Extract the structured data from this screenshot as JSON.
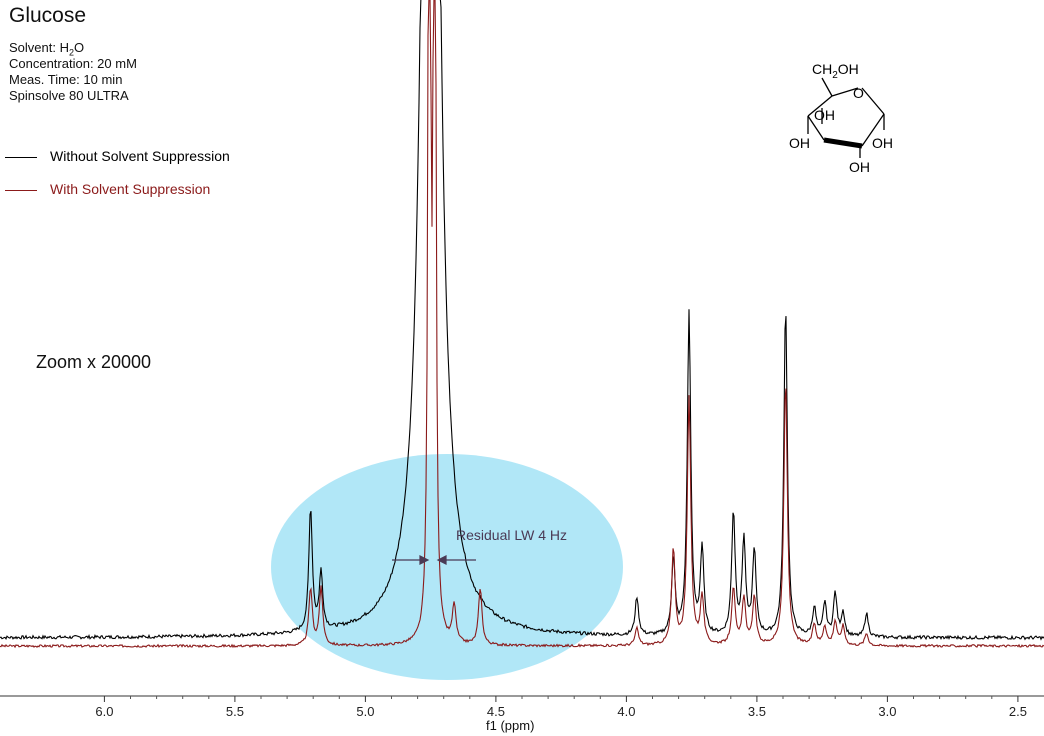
{
  "title": "Glucose",
  "meta": {
    "solvent_prefix": "Solvent: H",
    "solvent_sub": "2",
    "solvent_suffix": "O",
    "concentration": "Concentration: 20 mM",
    "time": "Meas. Time: 10 min",
    "instrument": "Spinsolve 80 ULTRA"
  },
  "zoom_label": "Zoom x 20000",
  "annotation": "Residual LW 4 Hz",
  "molecule": {
    "ch2oh_prefix": "CH",
    "ch2oh_sub": "2",
    "ch2oh_suffix": "OH",
    "ring_o": "O",
    "oh": "OH"
  },
  "colors": {
    "without": "#000000",
    "with": "#8b1a1a",
    "highlight": "#a8e4f6"
  },
  "chart_data": {
    "type": "line",
    "xlabel": "f1 (ppm)",
    "ylabel": "",
    "xlim": [
      6.4,
      2.4
    ],
    "x_reversed": true,
    "grid": false,
    "legend_placement": "top-left",
    "xticks": [
      "6.0",
      "5.5",
      "5.0",
      "4.5",
      "4.0",
      "3.5",
      "3.0",
      "2.5"
    ],
    "xtick_values": [
      6.0,
      5.5,
      5.0,
      4.5,
      4.0,
      3.5,
      3.0,
      2.5
    ],
    "series": [
      {
        "name": "Without Solvent Suppression",
        "color": "#000000",
        "peaks": [
          [
            5.21,
            13.0
          ],
          [
            5.17,
            6.0
          ],
          [
            4.75,
            200
          ],
          [
            3.96,
            4.0
          ],
          [
            3.82,
            8.0
          ],
          [
            3.76,
            34.0
          ],
          [
            3.71,
            9.0
          ],
          [
            3.59,
            13.0
          ],
          [
            3.55,
            10.0
          ],
          [
            3.51,
            9.0
          ],
          [
            3.39,
            35.0
          ],
          [
            3.28,
            3.0
          ],
          [
            3.24,
            3.5
          ],
          [
            3.2,
            4.5
          ],
          [
            3.17,
            2.5
          ],
          [
            3.08,
            2.5
          ]
        ]
      },
      {
        "name": "With Solvent Suppression",
        "color": "#8b1a1a",
        "peaks": [
          [
            5.21,
            6.0
          ],
          [
            5.17,
            6.0
          ],
          [
            4.755,
            160
          ],
          [
            4.735,
            160
          ],
          [
            4.66,
            4.0
          ],
          [
            4.56,
            6.0
          ],
          [
            3.96,
            1.8
          ],
          [
            3.82,
            10.0
          ],
          [
            3.76,
            26.0
          ],
          [
            3.71,
            5.0
          ],
          [
            3.59,
            6.0
          ],
          [
            3.55,
            5.0
          ],
          [
            3.51,
            5.0
          ],
          [
            3.39,
            28.0
          ],
          [
            3.28,
            2.2
          ],
          [
            3.24,
            2.0
          ],
          [
            3.2,
            2.5
          ],
          [
            3.17,
            2.0
          ],
          [
            3.08,
            1.3
          ]
        ]
      }
    ]
  }
}
